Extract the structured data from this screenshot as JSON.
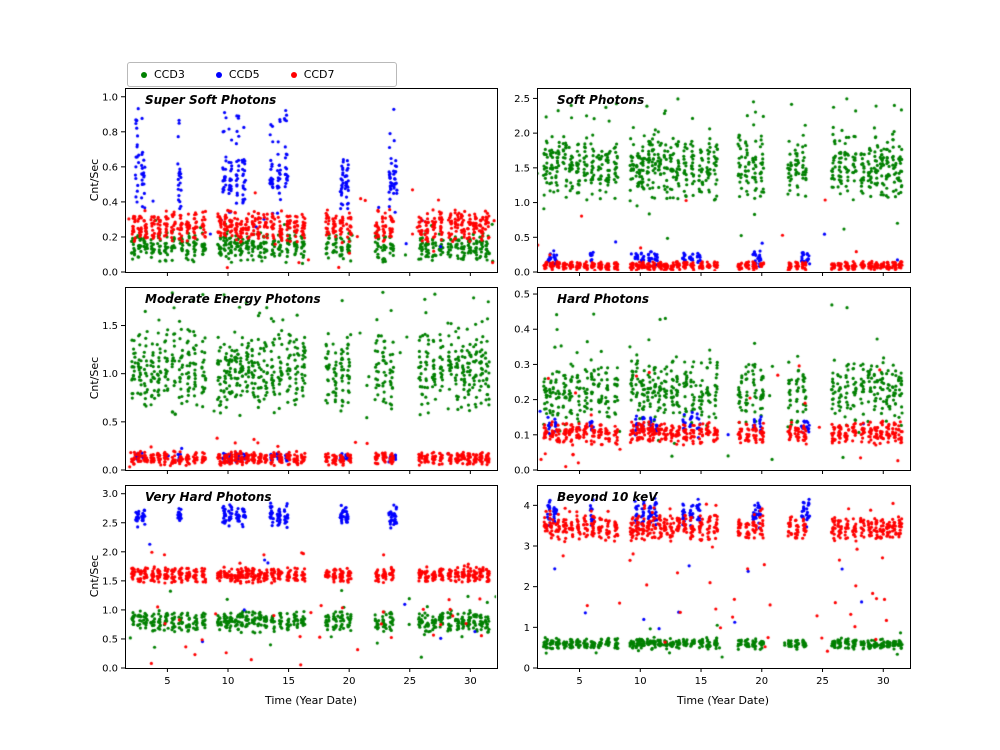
{
  "figure": {
    "background": "#ffffff"
  },
  "legend": {
    "items": [
      {
        "label": "CCD3",
        "color": "#008000"
      },
      {
        "label": "CCD5",
        "color": "#0000ff"
      },
      {
        "label": "CCD7",
        "color": "#ff0000"
      }
    ]
  },
  "chart_data": {
    "type": "scatter",
    "xlabel": "Time (Year Date)",
    "ylabel": "Cnt/Sec",
    "xlim": [
      1.5,
      32.2
    ],
    "xticks": [
      "5",
      "10",
      "15",
      "20",
      "25",
      "30"
    ],
    "legend_position": "upper left outside",
    "grid": false,
    "x_groups": {
      "main": [
        2.2,
        2.7,
        3.2,
        3.8,
        4.3,
        4.9,
        5.5,
        6.1,
        6.7,
        7.3,
        8.0,
        9.3,
        9.8,
        10.2,
        10.7,
        11.1,
        11.6,
        12.1,
        12.6,
        13.1,
        13.7,
        14.3,
        15.0,
        15.6,
        16.2,
        18.2,
        18.8,
        19.4,
        20.0,
        22.3,
        22.9,
        23.5,
        25.9,
        26.4,
        27.0,
        27.6,
        28.3,
        28.9,
        29.4,
        29.9,
        30.4,
        30.9,
        31.4
      ],
      "blue": [
        2.5,
        3.0,
        6.0,
        9.7,
        10.2,
        10.8,
        11.3,
        13.6,
        14.2,
        14.8,
        19.4,
        19.8,
        23.4,
        23.8
      ]
    },
    "plots": [
      {
        "title": "Super Soft Photons",
        "ylim": [
          0,
          1.05
        ],
        "yticks": [
          "0.0",
          "0.2",
          "0.4",
          "0.6",
          "0.8",
          "1.0"
        ],
        "series": [
          {
            "name": "CCD3",
            "color": "#008000",
            "clusters": {
              "x": "main",
              "n": 14,
              "xspread": 0.16,
              "y": [
                0.05,
                0.24
              ]
            },
            "sparse": {
              "n": 22,
              "y": [
                0.01,
                0.3
              ]
            }
          },
          {
            "name": "CCD5",
            "color": "#0000ff",
            "clusters": {
              "x": "blue",
              "n": 20,
              "xspread": 0.14,
              "y": [
                0.32,
                0.72
              ],
              "peak": 0.95,
              "peak_frac": 0.12
            },
            "sparse": {
              "n": 10,
              "y": [
                0.05,
                0.45
              ]
            }
          },
          {
            "name": "CCD7",
            "color": "#ff0000",
            "clusters": {
              "x": "main",
              "n": 16,
              "xspread": 0.16,
              "y": [
                0.16,
                0.36
              ]
            },
            "sparse": {
              "n": 30,
              "y": [
                0.02,
                0.5
              ]
            }
          }
        ]
      },
      {
        "title": "Soft Photons",
        "ylim": [
          0,
          2.65
        ],
        "yticks": [
          "0.0",
          "0.5",
          "1.0",
          "1.5",
          "2.0",
          "2.5"
        ],
        "series": [
          {
            "name": "CCD3",
            "color": "#008000",
            "clusters": {
              "x": "main",
              "n": 20,
              "xspread": 0.16,
              "y": [
                1.0,
                2.05
              ],
              "peak": 2.5,
              "peak_frac": 0.04
            },
            "sparse": {
              "n": 20,
              "y": [
                0.25,
                2.2
              ]
            }
          },
          {
            "name": "CCD5",
            "color": "#0000ff",
            "clusters": {
              "x": "blue",
              "n": 10,
              "xspread": 0.14,
              "y": [
                0.08,
                0.32
              ]
            },
            "sparse": {
              "n": 5,
              "y": [
                0.1,
                0.55
              ]
            }
          },
          {
            "name": "CCD7",
            "color": "#ff0000",
            "clusters": {
              "x": "main",
              "n": 14,
              "xspread": 0.16,
              "y": [
                0.02,
                0.16
              ]
            },
            "sparse": {
              "n": 8,
              "y": [
                0.1,
                1.05
              ]
            }
          }
        ]
      },
      {
        "title": "Moderate Energy Photons",
        "ylim": [
          0,
          1.9
        ],
        "yticks": [
          "0.0",
          "0.5",
          "1.0",
          "1.5"
        ],
        "series": [
          {
            "name": "CCD3",
            "color": "#008000",
            "clusters": {
              "x": "main",
              "n": 20,
              "xspread": 0.16,
              "y": [
                0.55,
                1.5
              ],
              "peak": 1.85,
              "peak_frac": 0.03
            },
            "sparse": {
              "n": 20,
              "y": [
                0.2,
                1.6
              ]
            }
          },
          {
            "name": "CCD5",
            "color": "#0000ff",
            "clusters": {
              "x": "blue",
              "n": 8,
              "xspread": 0.14,
              "y": [
                0.08,
                0.18
              ]
            },
            "sparse": {
              "n": 4,
              "y": [
                0.05,
                0.3
              ]
            }
          },
          {
            "name": "CCD7",
            "color": "#ff0000",
            "clusters": {
              "x": "main",
              "n": 14,
              "xspread": 0.16,
              "y": [
                0.04,
                0.2
              ]
            },
            "sparse": {
              "n": 15,
              "y": [
                0.0,
                0.35
              ]
            }
          }
        ]
      },
      {
        "title": "Hard Photons",
        "ylim": [
          0,
          0.52
        ],
        "yticks": [
          "0.0",
          "0.1",
          "0.2",
          "0.3",
          "0.4",
          "0.5"
        ],
        "series": [
          {
            "name": "CCD3",
            "color": "#008000",
            "clusters": {
              "x": "main",
              "n": 16,
              "xspread": 0.16,
              "y": [
                0.12,
                0.33
              ],
              "peak": 0.47,
              "peak_frac": 0.03
            },
            "sparse": {
              "n": 20,
              "y": [
                0.02,
                0.4
              ]
            }
          },
          {
            "name": "CCD5",
            "color": "#0000ff",
            "clusters": {
              "x": "blue",
              "n": 8,
              "xspread": 0.14,
              "y": [
                0.09,
                0.17
              ]
            },
            "sparse": {
              "n": 4,
              "y": [
                0.05,
                0.25
              ]
            }
          },
          {
            "name": "CCD7",
            "color": "#ff0000",
            "clusters": {
              "x": "main",
              "n": 14,
              "xspread": 0.16,
              "y": [
                0.07,
                0.14
              ]
            },
            "sparse": {
              "n": 28,
              "y": [
                0.0,
                0.3
              ]
            }
          }
        ]
      },
      {
        "title": "Very Hard Photons",
        "ylim": [
          0,
          3.15
        ],
        "yticks": [
          "0.0",
          "0.5",
          "1.0",
          "1.5",
          "2.0",
          "2.5",
          "3.0"
        ],
        "series": [
          {
            "name": "CCD3",
            "color": "#008000",
            "clusters": {
              "x": "main",
              "n": 14,
              "xspread": 0.16,
              "y": [
                0.6,
                1.0
              ]
            },
            "sparse": {
              "n": 25,
              "y": [
                0.1,
                1.4
              ]
            }
          },
          {
            "name": "CCD5",
            "color": "#0000ff",
            "clusters": {
              "x": "blue",
              "n": 16,
              "xspread": 0.14,
              "y": [
                2.4,
                2.85
              ]
            },
            "sparse": {
              "n": 8,
              "y": [
                0.3,
                2.2
              ]
            }
          },
          {
            "name": "CCD7",
            "color": "#ff0000",
            "clusters": {
              "x": "main",
              "n": 16,
              "xspread": 0.16,
              "y": [
                1.45,
                1.75
              ],
              "peak": 2.0,
              "peak_frac": 0.02
            },
            "sparse": {
              "n": 30,
              "y": [
                0.05,
                1.3
              ]
            }
          }
        ]
      },
      {
        "title": "Beyond 10 keV",
        "ylim": [
          0,
          4.5
        ],
        "yticks": [
          "0",
          "1",
          "2",
          "3",
          "4"
        ],
        "series": [
          {
            "name": "CCD3",
            "color": "#008000",
            "clusters": {
              "x": "main",
              "n": 14,
              "xspread": 0.16,
              "y": [
                0.45,
                0.75
              ]
            },
            "sparse": {
              "n": 15,
              "y": [
                0.2,
                1.1
              ]
            }
          },
          {
            "name": "CCD5",
            "color": "#0000ff",
            "clusters": {
              "x": "blue",
              "n": 14,
              "xspread": 0.14,
              "y": [
                3.4,
                4.2
              ]
            },
            "sparse": {
              "n": 10,
              "y": [
                0.8,
                2.6
              ]
            }
          },
          {
            "name": "CCD7",
            "color": "#ff0000",
            "clusters": {
              "x": "main",
              "n": 16,
              "xspread": 0.16,
              "y": [
                3.1,
                3.8
              ],
              "peak": 4.1,
              "peak_frac": 0.02
            },
            "sparse": {
              "n": 35,
              "y": [
                0.3,
                3.0
              ]
            }
          }
        ]
      }
    ]
  }
}
